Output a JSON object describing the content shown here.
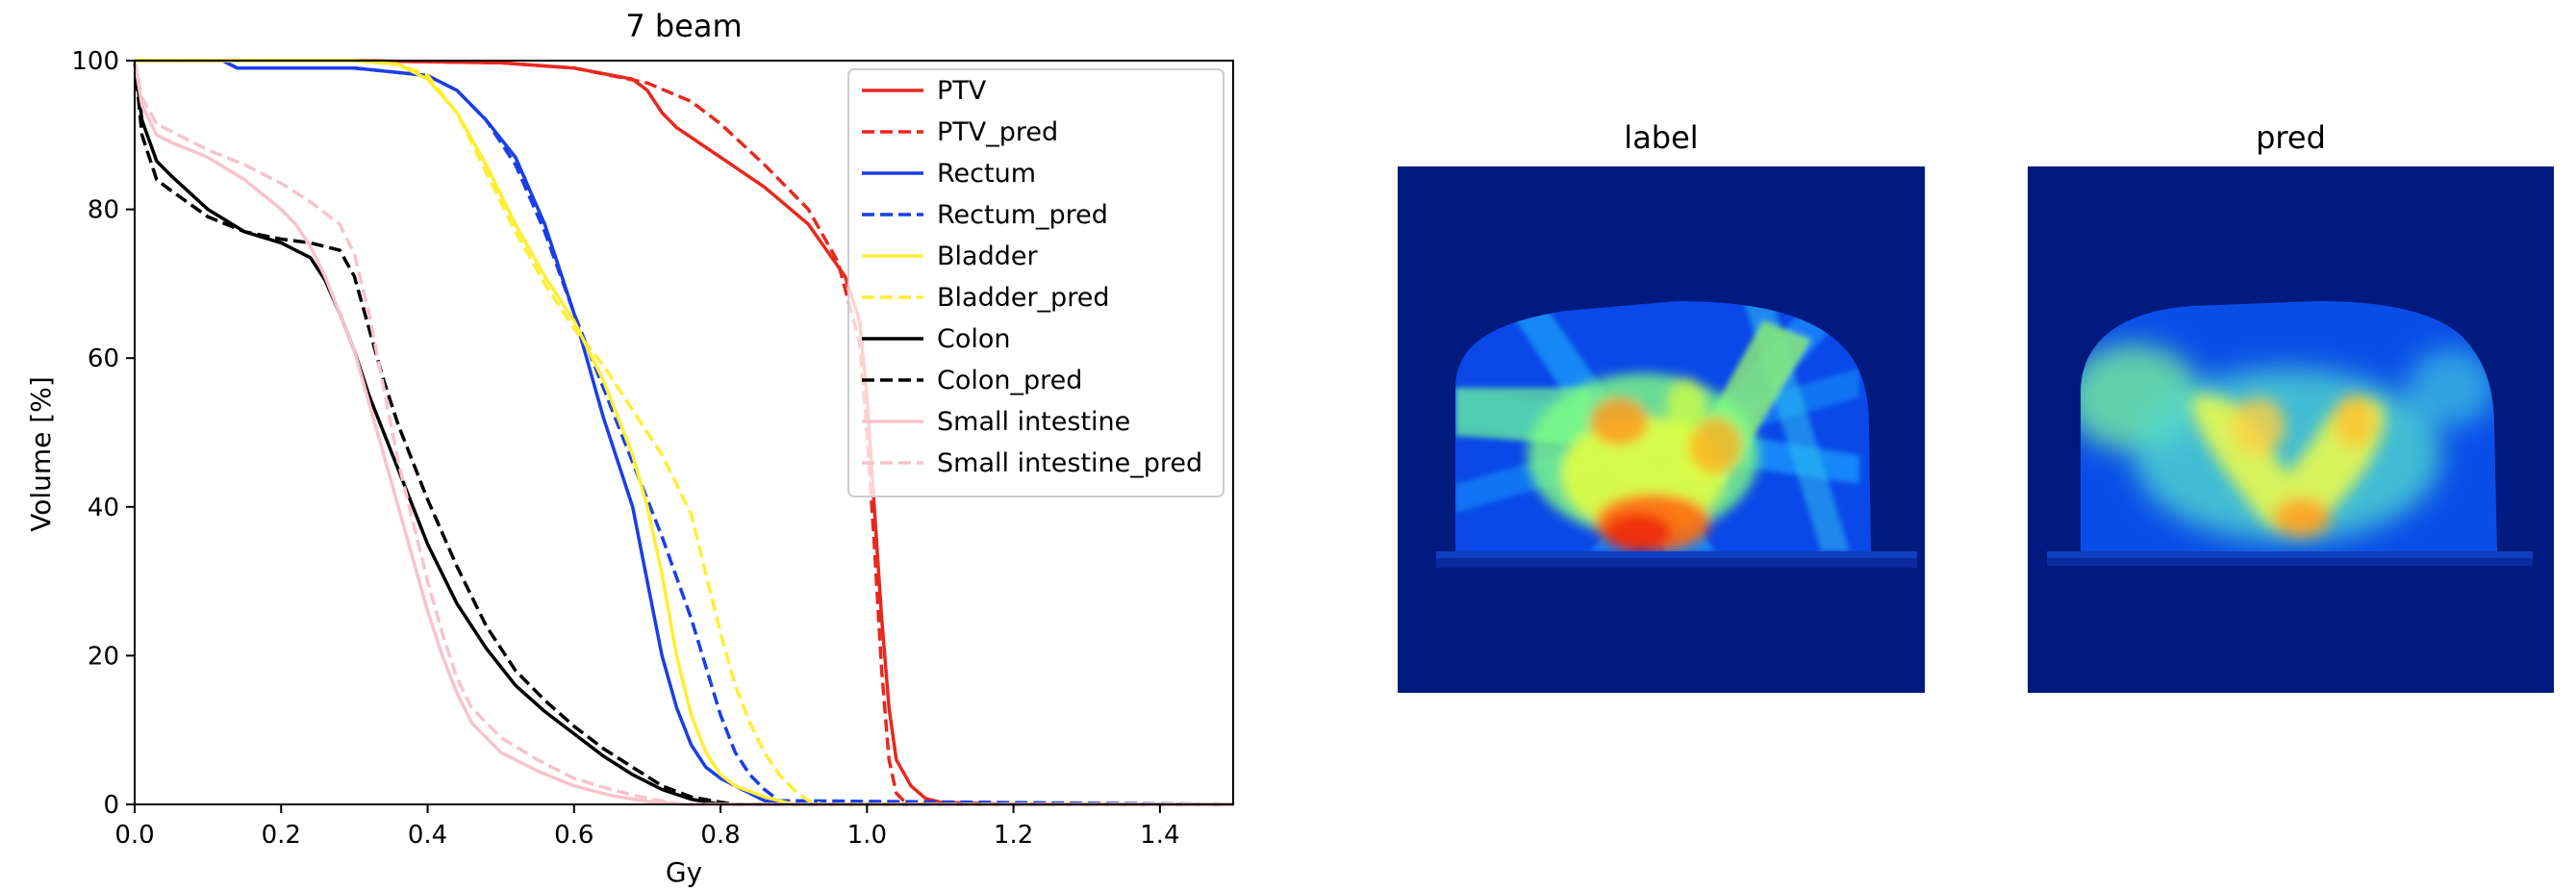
{
  "chart_data": [
    {
      "type": "line",
      "title": "7 beam",
      "xlabel": "Gy",
      "ylabel": "Volume [%]",
      "xlim": [
        0.0,
        1.5
      ],
      "ylim": [
        0,
        100
      ],
      "xticks": [
        "0.0",
        "0.2",
        "0.4",
        "0.6",
        "0.8",
        "1.0",
        "1.2",
        "1.4"
      ],
      "yticks": [
        "0",
        "20",
        "40",
        "60",
        "80",
        "100"
      ],
      "grid": false,
      "legend_position": "top-right",
      "series": [
        {
          "name": "PTV",
          "color": "#e8281e",
          "style": "solid",
          "x": [
            0,
            0.3,
            0.5,
            0.6,
            0.68,
            0.7,
            0.72,
            0.74,
            0.8,
            0.86,
            0.92,
            0.97,
            0.99,
            1.0,
            1.01,
            1.02,
            1.03,
            1.04,
            1.06,
            1.08,
            1.1,
            1.2,
            1.5
          ],
          "y": [
            100,
            100,
            99.7,
            99,
            97.5,
            96,
            93,
            91,
            87,
            83,
            78,
            71,
            65,
            55,
            40,
            25,
            13,
            6,
            2.5,
            0.8,
            0.3,
            0,
            0
          ]
        },
        {
          "name": "PTV_pred",
          "color": "#e8281e",
          "style": "dashed",
          "x": [
            0,
            0.3,
            0.5,
            0.6,
            0.7,
            0.76,
            0.8,
            0.86,
            0.92,
            0.96,
            0.99,
            1.0,
            1.01,
            1.02,
            1.03,
            1.04,
            1.05,
            1.06,
            1.08,
            1.5
          ],
          "y": [
            100,
            100,
            99.7,
            99,
            97,
            94.5,
            91.5,
            86,
            80,
            73,
            62,
            50,
            35,
            18,
            6,
            1.5,
            0.5,
            0,
            0,
            0
          ]
        },
        {
          "name": "Rectum",
          "color": "#1a3ee6",
          "style": "solid",
          "x": [
            0,
            0.12,
            0.14,
            0.3,
            0.4,
            0.44,
            0.48,
            0.52,
            0.56,
            0.6,
            0.64,
            0.68,
            0.7,
            0.72,
            0.74,
            0.76,
            0.78,
            0.8,
            0.82,
            0.84,
            0.86,
            0.9,
            1.5
          ],
          "y": [
            100,
            100,
            99,
            99,
            98,
            96,
            92,
            87,
            78,
            66,
            52,
            40,
            30,
            20,
            13,
            8,
            5,
            3.5,
            2.5,
            1.5,
            0.5,
            0,
            0
          ]
        },
        {
          "name": "Rectum_pred",
          "color": "#1a3ee6",
          "style": "dashed",
          "x": [
            0,
            0.12,
            0.14,
            0.3,
            0.4,
            0.44,
            0.48,
            0.52,
            0.56,
            0.6,
            0.64,
            0.68,
            0.72,
            0.76,
            0.8,
            0.82,
            0.84,
            0.86,
            0.88,
            1.5
          ],
          "y": [
            100,
            100,
            99,
            99,
            98,
            96,
            92,
            86,
            77,
            66,
            56,
            46,
            36,
            25,
            12,
            7,
            4,
            2,
            0.5,
            0
          ]
        },
        {
          "name": "Bladder",
          "color": "#ffee33",
          "style": "solid",
          "x": [
            0,
            0.3,
            0.36,
            0.4,
            0.44,
            0.48,
            0.52,
            0.56,
            0.6,
            0.64,
            0.68,
            0.7,
            0.72,
            0.74,
            0.76,
            0.78,
            0.8,
            0.82,
            0.86,
            0.9,
            1.5
          ],
          "y": [
            100,
            100,
            99.5,
            97.5,
            93,
            86,
            78,
            71,
            65,
            57,
            47,
            40,
            31,
            20,
            12,
            7,
            4,
            2.5,
            1,
            0,
            0
          ]
        },
        {
          "name": "Bladder_pred",
          "color": "#ffee33",
          "style": "dashed",
          "x": [
            0,
            0.3,
            0.36,
            0.4,
            0.44,
            0.48,
            0.52,
            0.56,
            0.6,
            0.64,
            0.68,
            0.72,
            0.76,
            0.8,
            0.82,
            0.84,
            0.86,
            0.88,
            0.9,
            0.92,
            0.94,
            1.5
          ],
          "y": [
            100,
            100,
            99.5,
            98,
            93,
            85,
            77,
            70,
            64,
            59,
            53,
            47,
            39,
            23,
            16,
            11,
            7,
            4,
            2,
            0.5,
            0,
            0
          ]
        },
        {
          "name": "Colon",
          "color": "#000000",
          "style": "solid",
          "x": [
            0,
            0.01,
            0.03,
            0.05,
            0.1,
            0.15,
            0.2,
            0.24,
            0.26,
            0.28,
            0.3,
            0.32,
            0.34,
            0.36,
            0.38,
            0.4,
            0.44,
            0.48,
            0.52,
            0.56,
            0.6,
            0.64,
            0.68,
            0.72,
            0.76,
            0.8,
            1.5
          ],
          "y": [
            100,
            92,
            86.5,
            84.5,
            80,
            77,
            75.5,
            73.5,
            70.5,
            66,
            61,
            55,
            50,
            45,
            40,
            35,
            27,
            21,
            16,
            12.5,
            9.5,
            6.5,
            4,
            2,
            0.7,
            0,
            0
          ]
        },
        {
          "name": "Colon_pred",
          "color": "#000000",
          "style": "dashed",
          "x": [
            0,
            0.01,
            0.03,
            0.05,
            0.1,
            0.15,
            0.2,
            0.24,
            0.28,
            0.3,
            0.32,
            0.34,
            0.36,
            0.38,
            0.4,
            0.44,
            0.48,
            0.52,
            0.56,
            0.6,
            0.64,
            0.68,
            0.72,
            0.76,
            0.8,
            0.82,
            1.5
          ],
          "y": [
            100,
            90,
            84,
            82.5,
            79,
            77,
            76,
            75.5,
            74.5,
            71,
            64,
            57,
            51,
            46,
            41,
            32,
            24,
            18,
            14,
            10.5,
            7.5,
            5,
            2.5,
            1,
            0.3,
            0,
            0
          ]
        },
        {
          "name": "Small intestine",
          "color": "#f7c3cc",
          "style": "solid",
          "x": [
            0,
            0.01,
            0.03,
            0.05,
            0.1,
            0.15,
            0.2,
            0.22,
            0.24,
            0.26,
            0.28,
            0.3,
            0.32,
            0.34,
            0.36,
            0.38,
            0.4,
            0.42,
            0.44,
            0.46,
            0.5,
            0.55,
            0.6,
            0.65,
            0.7,
            0.75,
            1.5
          ],
          "y": [
            100,
            94,
            90,
            89,
            87,
            84,
            80,
            78,
            75,
            71,
            66,
            61,
            54,
            47,
            40,
            33,
            26,
            20,
            15,
            11,
            7,
            4.5,
            2.5,
            1.2,
            0.4,
            0,
            0
          ]
        },
        {
          "name": "Small intestine_pred",
          "color": "#f7c3cc",
          "style": "dashed",
          "x": [
            0,
            0.01,
            0.03,
            0.05,
            0.1,
            0.15,
            0.2,
            0.24,
            0.28,
            0.3,
            0.32,
            0.34,
            0.36,
            0.38,
            0.4,
            0.42,
            0.44,
            0.46,
            0.5,
            0.55,
            0.6,
            0.65,
            0.7,
            0.75,
            1.5
          ],
          "y": [
            100,
            95,
            91.5,
            90.5,
            88,
            86,
            83.5,
            81,
            78,
            74,
            66,
            56,
            46,
            38,
            30,
            23,
            17,
            13,
            9,
            6,
            3.5,
            2,
            0.8,
            0,
            0
          ]
        }
      ]
    },
    {
      "type": "heatmap",
      "title": "label",
      "colormap": "jet",
      "background": "#001a80"
    },
    {
      "type": "heatmap",
      "title": "pred",
      "colormap": "jet",
      "background": "#001a80"
    }
  ]
}
